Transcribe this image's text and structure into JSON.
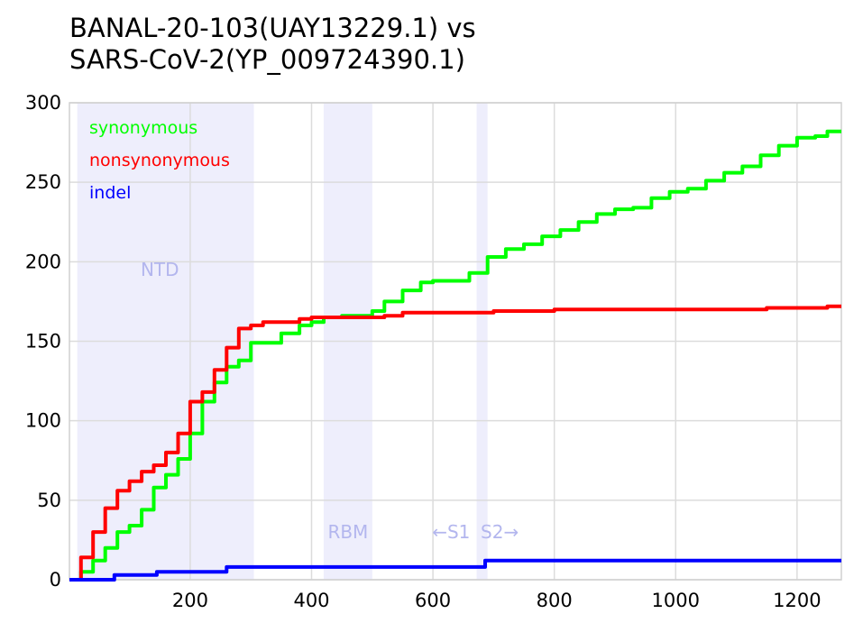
{
  "title": "BANAL-20-103(UAY13229.1) vs\nSARS-CoV-2(YP_009724390.1)",
  "chart_data": {
    "type": "line",
    "title": "BANAL-20-103(UAY13229.1) vs SARS-CoV-2(YP_009724390.1)",
    "xlabel": "",
    "ylabel": "",
    "xlim": [
      1,
      1273
    ],
    "ylim": [
      0,
      300
    ],
    "xticks": [
      200,
      400,
      600,
      800,
      1000,
      1200
    ],
    "yticks": [
      0,
      50,
      100,
      150,
      200,
      250,
      300
    ],
    "grid": true,
    "legend_position": "top-left",
    "regions": [
      {
        "label": "NTD",
        "start": 14,
        "end": 305,
        "color": "#eeeefc"
      },
      {
        "label": "RBM",
        "start": 420,
        "end": 500,
        "color": "#eeeefc"
      },
      {
        "label": "",
        "start": 672,
        "end": 690,
        "color": "#eeeefc"
      }
    ],
    "annotations": [
      {
        "text": "NTD",
        "x": 150,
        "y": 195
      },
      {
        "text": "RBM",
        "x": 460,
        "y": 30
      },
      {
        "text": "←S1",
        "x": 630,
        "y": 30
      },
      {
        "text": "S2→",
        "x": 710,
        "y": 30
      }
    ],
    "series": [
      {
        "name": "synonymous",
        "color": "#00ff00",
        "x": [
          1,
          20,
          40,
          60,
          80,
          100,
          120,
          140,
          160,
          180,
          200,
          220,
          240,
          260,
          280,
          300,
          320,
          350,
          380,
          400,
          420,
          450,
          480,
          500,
          520,
          550,
          580,
          600,
          630,
          660,
          690,
          720,
          750,
          780,
          810,
          840,
          870,
          900,
          930,
          960,
          990,
          1020,
          1050,
          1080,
          1110,
          1140,
          1170,
          1200,
          1230,
          1250,
          1273
        ],
        "y": [
          0,
          5,
          12,
          20,
          30,
          34,
          44,
          58,
          66,
          76,
          92,
          112,
          124,
          134,
          138,
          149,
          149,
          155,
          160,
          162,
          165,
          166,
          166,
          169,
          175,
          182,
          187,
          188,
          188,
          193,
          203,
          208,
          211,
          216,
          220,
          225,
          230,
          233,
          234,
          240,
          244,
          246,
          251,
          256,
          260,
          267,
          273,
          278,
          279,
          282,
          282
        ]
      },
      {
        "name": "nonsynonymous",
        "color": "#ff0000",
        "x": [
          1,
          20,
          40,
          60,
          80,
          100,
          120,
          140,
          160,
          180,
          200,
          220,
          240,
          260,
          280,
          300,
          320,
          350,
          380,
          400,
          450,
          500,
          520,
          550,
          600,
          700,
          800,
          1000,
          1150,
          1250,
          1273
        ],
        "y": [
          0,
          14,
          30,
          45,
          56,
          62,
          68,
          72,
          80,
          92,
          112,
          118,
          132,
          146,
          158,
          160,
          162,
          162,
          164,
          165,
          165,
          165,
          166,
          168,
          168,
          169,
          170,
          170,
          171,
          172,
          172
        ]
      },
      {
        "name": "indel",
        "color": "#0000ff",
        "x": [
          1,
          70,
          75,
          140,
          145,
          255,
          260,
          680,
          686,
          1273
        ],
        "y": [
          0,
          0,
          3,
          3,
          5,
          5,
          8,
          8,
          12,
          12
        ]
      }
    ]
  }
}
